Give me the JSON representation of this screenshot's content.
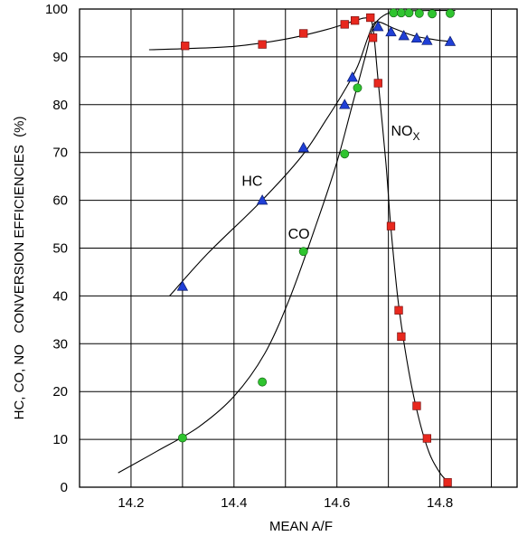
{
  "chart_data": {
    "type": "scatter",
    "xlabel": "MEAN A/F",
    "ylabel": "HC, CO, NO   CONVERSION EFFICIENCIES  (%)",
    "xlim": [
      14.1,
      14.95
    ],
    "ylim": [
      0,
      100
    ],
    "x_ticks": [
      14.2,
      14.4,
      14.6,
      14.8
    ],
    "x_tick_labels": [
      "14.2",
      "14.4",
      "14.6",
      "14.8"
    ],
    "y_ticks": [
      0,
      10,
      20,
      30,
      40,
      50,
      60,
      70,
      80,
      90,
      100
    ],
    "y_tick_labels": [
      "0",
      "10",
      "20",
      "30",
      "40",
      "50",
      "60",
      "70",
      "80",
      "90",
      "100"
    ],
    "x_gridlines": [
      14.2,
      14.3,
      14.4,
      14.5,
      14.6,
      14.7,
      14.8,
      14.9
    ],
    "grid": true,
    "series": [
      {
        "name": "HC",
        "marker": "triangle",
        "color": "#1f3fd6",
        "points": [
          [
            14.3,
            42
          ],
          [
            14.455,
            60
          ],
          [
            14.535,
            71
          ],
          [
            14.615,
            80
          ],
          [
            14.63,
            85.7
          ],
          [
            14.68,
            96.3
          ],
          [
            14.705,
            95.2
          ],
          [
            14.73,
            94.4
          ],
          [
            14.755,
            93.9
          ],
          [
            14.775,
            93.4
          ],
          [
            14.82,
            93.2
          ]
        ],
        "curve": [
          [
            14.275,
            40
          ],
          [
            14.35,
            49
          ],
          [
            14.45,
            59.5
          ],
          [
            14.53,
            69
          ],
          [
            14.58,
            77
          ],
          [
            14.615,
            83
          ],
          [
            14.64,
            88
          ],
          [
            14.66,
            94
          ],
          [
            14.672,
            97
          ],
          [
            14.685,
            97.2
          ],
          [
            14.71,
            96
          ],
          [
            14.75,
            94.4
          ],
          [
            14.79,
            93.6
          ],
          [
            14.82,
            93.2
          ]
        ]
      },
      {
        "name": "CO",
        "marker": "circle",
        "color": "#2fc42f",
        "points": [
          [
            14.3,
            10.3
          ],
          [
            14.455,
            22
          ],
          [
            14.535,
            49.3
          ],
          [
            14.615,
            69.7
          ],
          [
            14.64,
            83.5
          ],
          [
            14.71,
            99.2
          ],
          [
            14.725,
            99.2
          ],
          [
            14.74,
            99.2
          ],
          [
            14.76,
            99.1
          ],
          [
            14.785,
            99
          ],
          [
            14.82,
            99.1
          ]
        ],
        "curve": [
          [
            14.175,
            3
          ],
          [
            14.25,
            7.5
          ],
          [
            14.33,
            12.5
          ],
          [
            14.4,
            19
          ],
          [
            14.46,
            28
          ],
          [
            14.51,
            40
          ],
          [
            14.56,
            55
          ],
          [
            14.6,
            68
          ],
          [
            14.63,
            80
          ],
          [
            14.655,
            90
          ],
          [
            14.67,
            96
          ],
          [
            14.69,
            98.6
          ],
          [
            14.72,
            99.5
          ],
          [
            14.78,
            99.7
          ],
          [
            14.83,
            99.7
          ]
        ]
      },
      {
        "name": "NOx",
        "marker": "square",
        "color": "#e8281e",
        "points": [
          [
            14.305,
            92.3
          ],
          [
            14.455,
            92.6
          ],
          [
            14.535,
            94.9
          ],
          [
            14.615,
            96.8
          ],
          [
            14.635,
            97.6
          ],
          [
            14.665,
            98.2
          ],
          [
            14.67,
            94
          ],
          [
            14.68,
            84.5
          ],
          [
            14.705,
            54.6
          ],
          [
            14.72,
            37
          ],
          [
            14.725,
            31.5
          ],
          [
            14.755,
            17
          ],
          [
            14.775,
            10.2
          ],
          [
            14.815,
            1
          ]
        ],
        "curve": [
          [
            14.235,
            91.5
          ],
          [
            14.3,
            91.7
          ],
          [
            14.4,
            92.2
          ],
          [
            14.5,
            93.7
          ],
          [
            14.58,
            95.7
          ],
          [
            14.63,
            97.4
          ],
          [
            14.66,
            98.1
          ],
          [
            14.67,
            96
          ],
          [
            14.68,
            85
          ],
          [
            14.695,
            68
          ],
          [
            14.705,
            54
          ],
          [
            14.72,
            38
          ],
          [
            14.74,
            24
          ],
          [
            14.76,
            14
          ],
          [
            14.78,
            7
          ],
          [
            14.8,
            3
          ],
          [
            14.815,
            1.2
          ]
        ]
      }
    ],
    "annotations": [
      {
        "text": "HC",
        "x": 14.415,
        "y": 63
      },
      {
        "text": "CO",
        "x": 14.505,
        "y": 52
      },
      {
        "text": "NO",
        "sub": "X",
        "x": 14.705,
        "y": 73.5
      }
    ]
  }
}
